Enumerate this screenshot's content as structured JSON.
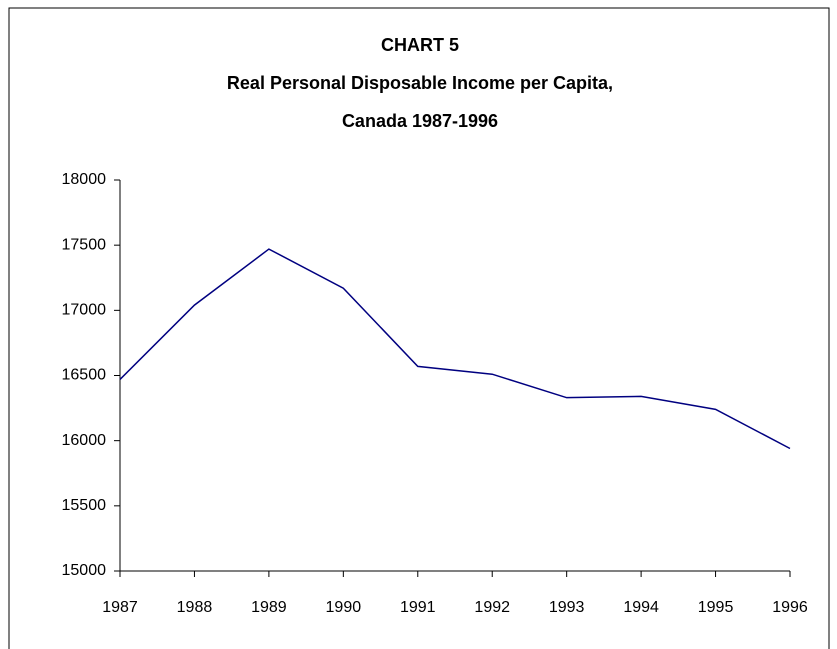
{
  "chart_data": {
    "type": "line",
    "title": [
      "CHART 5",
      "Real Personal Disposable Income per Capita,",
      "Canada 1987-1996"
    ],
    "x": [
      1987,
      1988,
      1989,
      1990,
      1991,
      1992,
      1993,
      1994,
      1995,
      1996
    ],
    "series": [
      {
        "color": "#000080",
        "values": [
          16470,
          17040,
          17470,
          17170,
          16570,
          16510,
          16330,
          16340,
          16240,
          15940
        ]
      }
    ],
    "xlim": [
      1987,
      1996
    ],
    "xticks": [
      1987,
      1988,
      1989,
      1990,
      1991,
      1992,
      1993,
      1994,
      1995,
      1996
    ],
    "ylim": [
      15000,
      18000
    ],
    "yticks": [
      15000,
      15500,
      16000,
      16500,
      17000,
      17500,
      18000
    ]
  }
}
